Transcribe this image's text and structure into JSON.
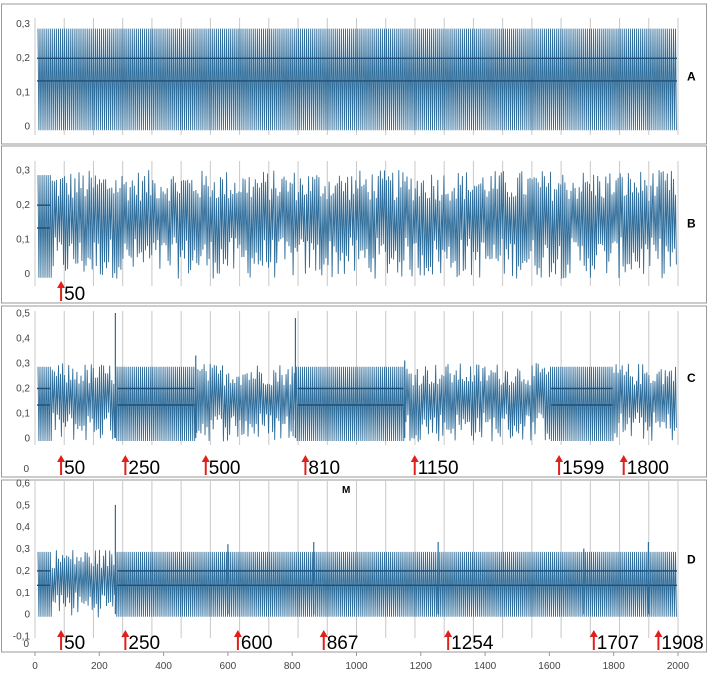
{
  "figure": {
    "x_range": [
      0,
      2000
    ],
    "x_ticks": [
      "0",
      "200",
      "400",
      "600",
      "800",
      "1000",
      "1200",
      "1400",
      "1600",
      "1800",
      "2000"
    ],
    "annotation_color": "#e0211b",
    "series_color": "#2f6d9a",
    "grid_color": "#c8c8c8"
  },
  "chart_data": [
    {
      "type": "line",
      "panel": "A",
      "label": "A",
      "ylim": [
        -0.02,
        0.31
      ],
      "y_ticks": [
        "0",
        "0,1",
        "0,2",
        "0,3"
      ],
      "y_tick_values": [
        0,
        0.1,
        0.2,
        0.3
      ],
      "pattern": "stable periodic oscillation between ~-0.01 and ~0.285 with plateau levels at ~0.13 and ~0.20",
      "events": []
    },
    {
      "type": "line",
      "panel": "B",
      "label": "B",
      "ylim": [
        -0.03,
        0.32
      ],
      "y_ticks": [
        "0",
        "0,1",
        "0,2",
        "0,3"
      ],
      "y_tick_values": [
        0,
        0.1,
        0.2,
        0.3
      ],
      "pattern": "irregular oscillation between ~0.0 and ~0.30",
      "events": [
        {
          "x": 50,
          "label": "50"
        }
      ]
    },
    {
      "type": "line",
      "panel": "C",
      "label": "C",
      "ylim": [
        -0.02,
        0.5
      ],
      "y_ticks": [
        "0",
        "0,1",
        "0,2",
        "0,3",
        "0,4",
        "0,5"
      ],
      "y_tick_values": [
        0,
        0.1,
        0.2,
        0.3,
        0.4,
        0.5
      ],
      "x_zero_label": "0",
      "regular_segments": [
        [
          250,
          500
        ],
        [
          810,
          1150
        ],
        [
          1599,
          1800
        ]
      ],
      "spikes": [
        {
          "x": 250,
          "y": 0.5
        },
        {
          "x": 500,
          "y": 0.33
        },
        {
          "x": 810,
          "y": 0.48
        },
        {
          "x": 1150,
          "y": 0.31
        }
      ],
      "events": [
        {
          "x": 50,
          "label": "50"
        },
        {
          "x": 250,
          "label": "250"
        },
        {
          "x": 500,
          "label": "500"
        },
        {
          "x": 810,
          "label": "810"
        },
        {
          "x": 1150,
          "label": "1150"
        },
        {
          "x": 1599,
          "label": "1599"
        },
        {
          "x": 1800,
          "label": "1800"
        }
      ]
    },
    {
      "type": "line",
      "panel": "D",
      "label": "D",
      "title": "M",
      "ylim": [
        -0.1,
        0.6
      ],
      "y_ticks": [
        "-0,1",
        "0",
        "0,1",
        "0,2",
        "0,3",
        "0,4",
        "0,5",
        "0,6"
      ],
      "y_tick_values": [
        -0.1,
        0,
        0.1,
        0.2,
        0.3,
        0.4,
        0.5,
        0.6
      ],
      "x_zero_label": "0",
      "regular_segments": [
        [
          250,
          2000
        ]
      ],
      "spikes": [
        {
          "x": 250,
          "y": 0.5
        },
        {
          "x": 600,
          "y": 0.32
        },
        {
          "x": 867,
          "y": 0.33
        },
        {
          "x": 1254,
          "y": 0.33
        },
        {
          "x": 1707,
          "y": 0.3
        },
        {
          "x": 1908,
          "y": 0.33
        }
      ],
      "events": [
        {
          "x": 50,
          "label": "50"
        },
        {
          "x": 250,
          "label": "250"
        },
        {
          "x": 600,
          "label": "600"
        },
        {
          "x": 867,
          "label": "867"
        },
        {
          "x": 1254,
          "label": "1254"
        },
        {
          "x": 1707,
          "label": "1707"
        },
        {
          "x": 1908,
          "label": "1908"
        }
      ]
    }
  ]
}
